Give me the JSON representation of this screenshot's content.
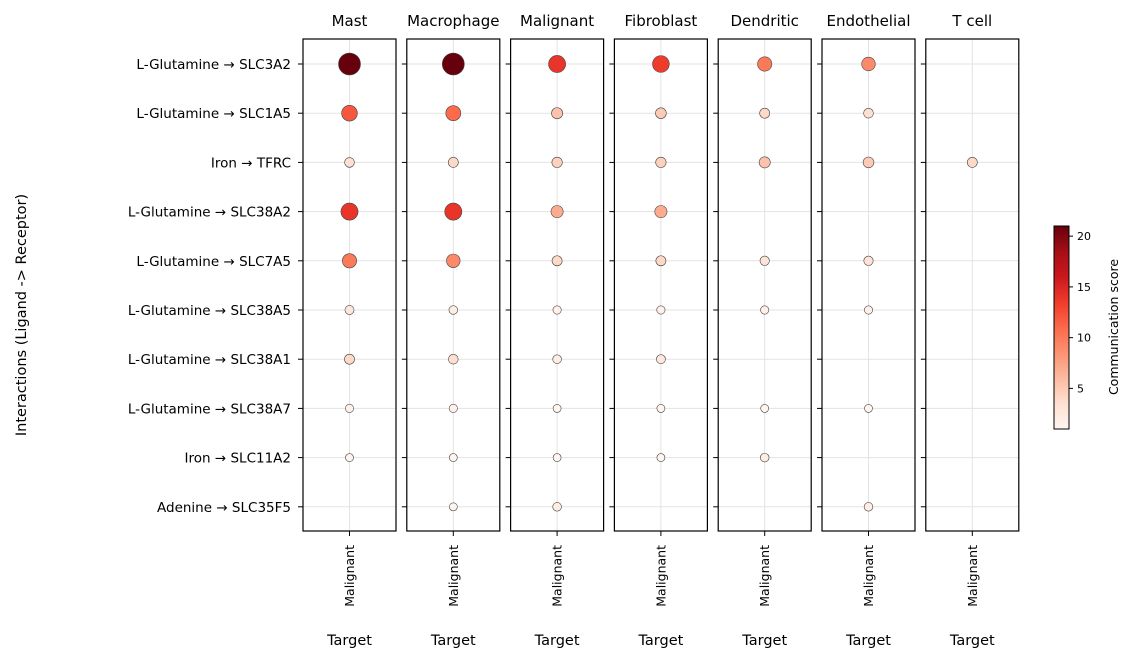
{
  "chart_data": {
    "type": "scatter",
    "ylabel": "Interactions (Ligand -> Receptor)",
    "panel_xlabel": "Target",
    "panels": [
      {
        "title": "Mast",
        "target": "Malignant"
      },
      {
        "title": "Macrophage",
        "target": "Malignant"
      },
      {
        "title": "Malignant",
        "target": "Malignant"
      },
      {
        "title": "Fibroblast",
        "target": "Malignant"
      },
      {
        "title": "Dendritic",
        "target": "Malignant"
      },
      {
        "title": "Endothelial",
        "target": "Malignant"
      },
      {
        "title": "T cell",
        "target": "Malignant"
      }
    ],
    "interactions": [
      "L-Glutamine → SLC3A2",
      "L-Glutamine → SLC1A5",
      "Iron → TFRC",
      "L-Glutamine → SLC38A2",
      "L-Glutamine → SLC7A5",
      "L-Glutamine → SLC38A5",
      "L-Glutamine → SLC38A1",
      "L-Glutamine → SLC38A7",
      "Iron → SLC11A2",
      "Adenine → SLC35F5"
    ],
    "scores": [
      [
        21,
        21,
        14,
        13.5,
        10,
        9,
        null
      ],
      [
        12,
        11,
        5.5,
        5,
        4,
        3.5,
        null
      ],
      [
        3.5,
        4,
        4.5,
        4.5,
        5.5,
        5,
        4
      ],
      [
        14,
        14,
        7,
        7,
        null,
        null,
        null
      ],
      [
        10,
        9,
        4,
        4,
        3,
        3,
        null
      ],
      [
        2.5,
        2,
        1.5,
        1.5,
        1.5,
        1.5,
        null
      ],
      [
        4,
        3.5,
        2,
        2.5,
        null,
        null,
        null
      ],
      [
        1.5,
        1.5,
        1,
        1,
        1,
        1,
        null
      ],
      [
        1,
        1,
        1,
        1,
        2,
        null,
        null
      ],
      [
        null,
        1,
        2,
        null,
        null,
        2,
        null
      ]
    ],
    "colorbar": {
      "label": "Communication score",
      "min": 1,
      "max": 21,
      "ticks": [
        5,
        10,
        15,
        20
      ],
      "colormap": "Reds"
    },
    "grid": true
  }
}
